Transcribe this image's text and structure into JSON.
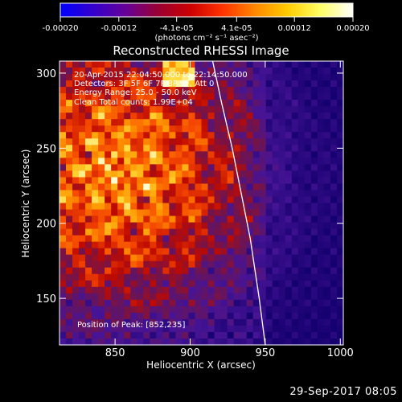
{
  "chart_data": {
    "type": "heatmap",
    "title": "Reconstructed RHESSI Image",
    "colorbar": {
      "tick_labels": [
        "-0.00020",
        "-0.00012",
        "-4.1e-05",
        "4.1e-05",
        "0.00012",
        "0.00020"
      ],
      "tick_values": [
        -0.0002,
        -0.00012,
        -4.1e-05,
        4.1e-05,
        0.00012,
        0.0002
      ],
      "range": [
        -0.0002,
        0.0002
      ],
      "unit_label": "(photons cm⁻² s⁻¹ asec⁻²)",
      "colormap": [
        "#0000ff",
        "#3300cc",
        "#660099",
        "#990033",
        "#cc0000",
        "#ff3300",
        "#ff8800",
        "#ffcc00",
        "#ffff66",
        "#ffffff"
      ]
    },
    "xlabel": "Heliocentric X (arcsec)",
    "ylabel": "Heliocentric Y (arcsec)",
    "xlim": [
      813,
      1002
    ],
    "ylim": [
      119,
      308
    ],
    "xticks": [
      850,
      900,
      950,
      1000
    ],
    "yticks": [
      150,
      200,
      250,
      300
    ],
    "annotations": [
      "20-Apr-2015 22:04:50.000 to 22:14:50.000",
      "Detectors: 3F 5F 6F 7F 8F 9F, Att 0",
      "Energy Range: 25.0 - 50.0 keV",
      "Clean    Total counts: 1.99E+04"
    ],
    "peak_label": "Position of Peak: [852,235]",
    "peak": [
      852,
      235
    ],
    "limb_curve": {
      "x": [
        915,
        921,
        928,
        934,
        940,
        946,
        950
      ],
      "y": [
        308,
        280,
        250,
        220,
        190,
        150,
        119
      ]
    }
  },
  "footer": {
    "timestamp": "29-Sep-2017 08:05"
  }
}
